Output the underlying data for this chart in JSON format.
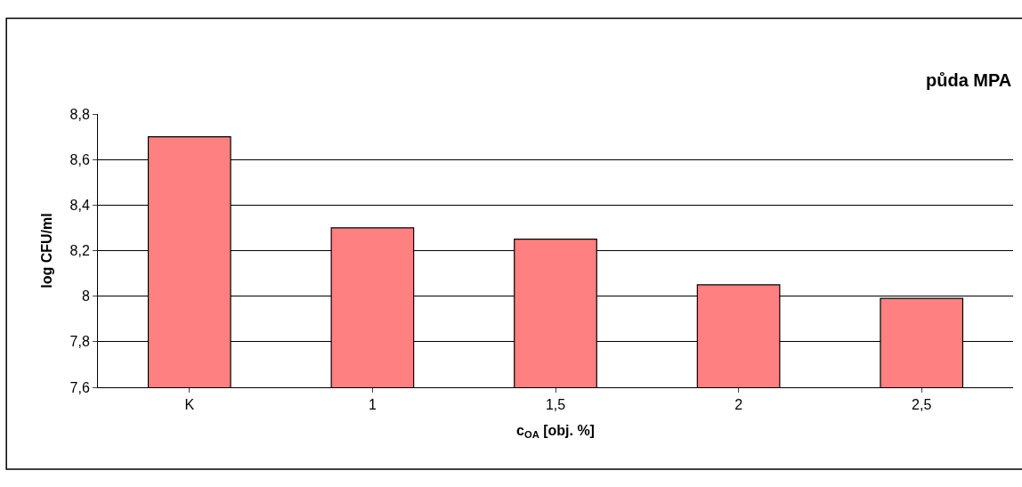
{
  "chart_data": {
    "type": "bar",
    "xlabel": "c$_{OA}$ [obj. %]",
    "ylabel": "log CFU/ml",
    "annotations": [
      "půda MPA"
    ],
    "categories": [
      "K",
      "1",
      "1,5",
      "2",
      "2,5"
    ],
    "values": [
      8.7,
      8.3,
      8.25,
      8.05,
      7.99
    ],
    "color": "#ff8080",
    "ylim": [
      7.6,
      8.8
    ],
    "yticks": [
      {
        "value": 7.6,
        "label": "7,6"
      },
      {
        "value": 7.8,
        "label": "7,8"
      },
      8,
      {
        "value": 8.2,
        "label": "8,2"
      },
      {
        "value": 8.4,
        "label": "8,4"
      },
      {
        "value": 8.6,
        "label": "8,6"
      },
      {
        "value": 8.8,
        "label": "8,8"
      }
    ],
    "grid": "y",
    "legend": false
  }
}
